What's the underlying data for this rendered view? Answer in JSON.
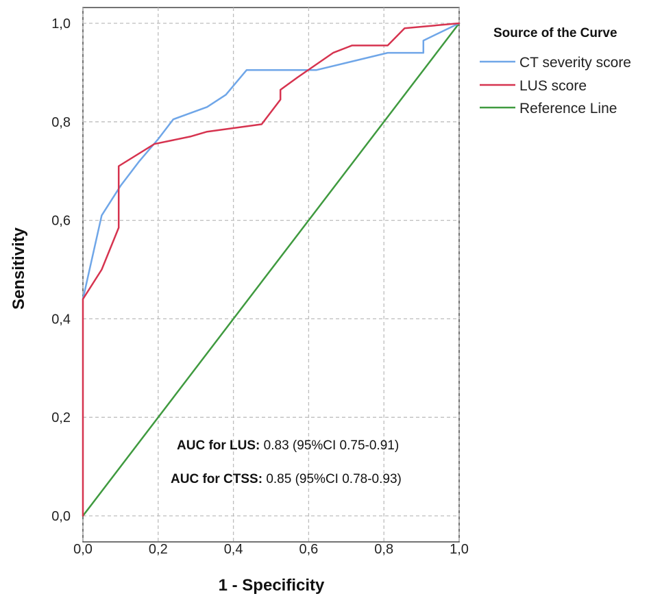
{
  "chart_data": {
    "type": "line",
    "title": "",
    "xlabel": "1 - Specificity",
    "ylabel": "Sensitivity",
    "xlim": [
      0,
      1
    ],
    "ylim": [
      0,
      1
    ],
    "x_ticks": [
      "0,0",
      "0,2",
      "0,4",
      "0,6",
      "0,8",
      "1,0"
    ],
    "y_ticks": [
      "0,0",
      "0,2",
      "0,4",
      "0,6",
      "0,8",
      "1,0"
    ],
    "grid": true,
    "legend": {
      "title": "Source of the Curve",
      "placement": "top-right, outside plot"
    },
    "series": [
      {
        "name": "CT severity score",
        "color": "#6fa6e8",
        "points": [
          [
            0,
            0.44
          ],
          [
            0.05,
            0.61
          ],
          [
            0.1,
            0.67
          ],
          [
            0.15,
            0.72
          ],
          [
            0.2,
            0.765
          ],
          [
            0.24,
            0.805
          ],
          [
            0.33,
            0.83
          ],
          [
            0.38,
            0.855
          ],
          [
            0.435,
            0.905
          ],
          [
            0.62,
            0.905
          ],
          [
            0.81,
            0.94
          ],
          [
            0.905,
            0.94
          ],
          [
            0.905,
            0.965
          ],
          [
            1,
            1
          ]
        ]
      },
      {
        "name": "LUS score",
        "color": "#d6334f",
        "points": [
          [
            0,
            0
          ],
          [
            0,
            0.44
          ],
          [
            0.05,
            0.5
          ],
          [
            0.095,
            0.585
          ],
          [
            0.095,
            0.71
          ],
          [
            0.19,
            0.755
          ],
          [
            0.285,
            0.77
          ],
          [
            0.33,
            0.78
          ],
          [
            0.475,
            0.795
          ],
          [
            0.525,
            0.845
          ],
          [
            0.525,
            0.865
          ],
          [
            0.57,
            0.89
          ],
          [
            0.665,
            0.94
          ],
          [
            0.715,
            0.955
          ],
          [
            0.81,
            0.955
          ],
          [
            0.855,
            0.99
          ],
          [
            1,
            1
          ]
        ]
      },
      {
        "name": "Reference Line",
        "color": "#3f9a3f",
        "points": [
          [
            0,
            0
          ],
          [
            1,
            1
          ]
        ]
      }
    ],
    "annotations": [
      {
        "label": "AUC for LUS:",
        "value": " 0.83 (95%CI 0.75-0.91)"
      },
      {
        "label": "AUC for CTSS:",
        "value": " 0.85 (95%CI 0.78-0.93)"
      }
    ]
  }
}
